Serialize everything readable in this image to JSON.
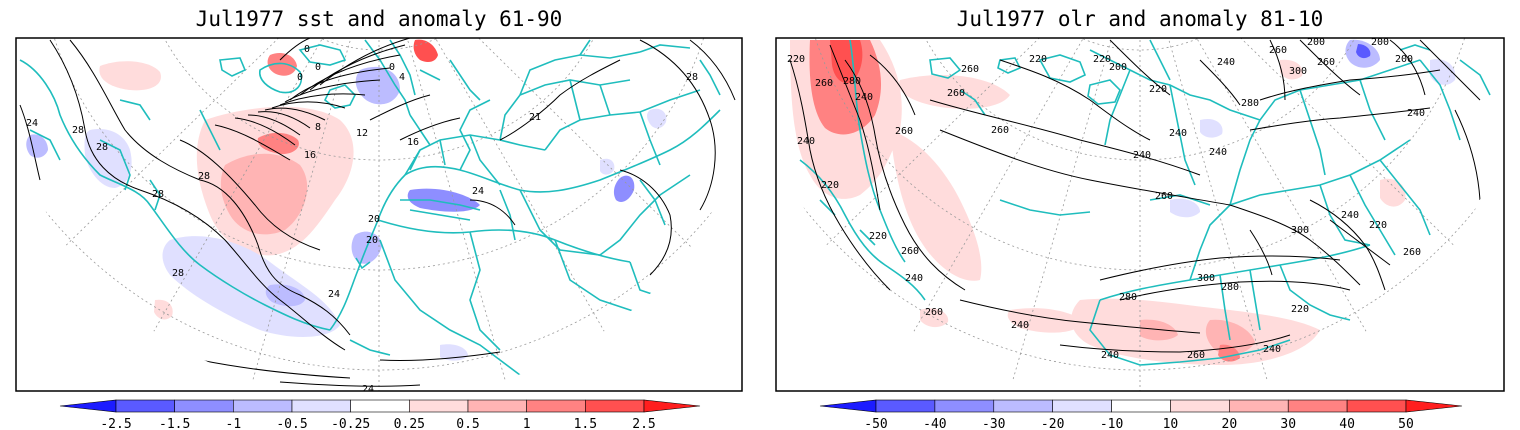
{
  "panels": [
    {
      "id": "sst",
      "title": "Jul1977 sst and anomaly 61-90",
      "contour_labels": [
        "0",
        "0",
        "0",
        "0",
        "4",
        "8",
        "12",
        "16",
        "16",
        "20",
        "20",
        "21",
        "24",
        "24",
        "24",
        "24",
        "28",
        "28",
        "28",
        "28",
        "28",
        "28"
      ],
      "colorbar_ticks": [
        "-2.5",
        "-1.5",
        "-1",
        "-0.5",
        "-0.25",
        "0.25",
        "0.5",
        "1",
        "1.5",
        "2.5"
      ]
    },
    {
      "id": "olr",
      "title": "Jul1977 olr and anomaly 81-10",
      "contour_labels": [
        "220",
        "220",
        "220",
        "220",
        "220",
        "220",
        "220",
        "220",
        "240",
        "240",
        "240",
        "240",
        "240",
        "240",
        "240",
        "240",
        "240",
        "240",
        "240",
        "240",
        "260",
        "260",
        "260",
        "260",
        "260",
        "260",
        "260",
        "260",
        "260",
        "260",
        "260",
        "260",
        "280",
        "280",
        "280",
        "280",
        "300",
        "300",
        "300",
        "200",
        "200",
        "200",
        "200"
      ],
      "colorbar_ticks": [
        "-50",
        "-40",
        "-30",
        "-20",
        "-10",
        "10",
        "20",
        "30",
        "40",
        "50"
      ]
    }
  ],
  "colors": {
    "coast": "#1fbdbd",
    "contour": "#000000",
    "graticule": "#9a9a9a",
    "scale": [
      "#1c1cff",
      "#5a5aff",
      "#8e8eff",
      "#bcbcff",
      "#e0e0ff",
      "#ffffff",
      "#ffdcdc",
      "#ffb4b4",
      "#ff8282",
      "#ff5050",
      "#ff1e1e"
    ]
  }
}
